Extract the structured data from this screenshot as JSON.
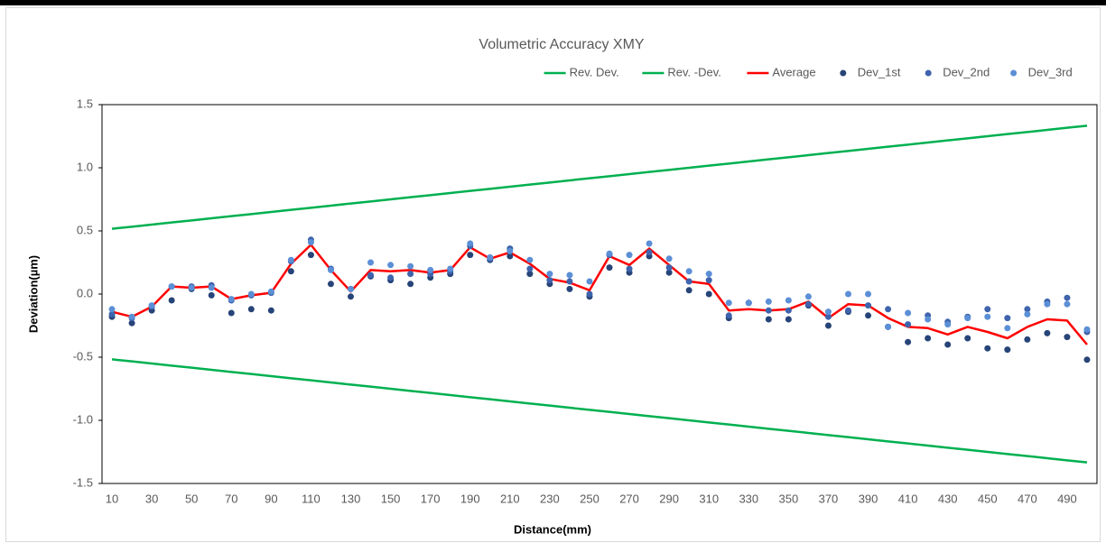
{
  "chart_data": {
    "type": "line",
    "title": "Volumetric Accuracy XMY",
    "x_label": "Distance(mm)",
    "y_label": "Deviation(µm)",
    "categories": [
      "10",
      null,
      "30",
      null,
      "50",
      null,
      "70",
      null,
      "90",
      null,
      "110",
      null,
      "130",
      null,
      "150",
      null,
      "170",
      null,
      "190",
      null,
      "210",
      null,
      "230",
      null,
      "250",
      null,
      "270",
      null,
      "290",
      null,
      "310",
      null,
      "330",
      null,
      "350",
      null,
      "370",
      null,
      "390",
      null,
      "410",
      null,
      "430",
      null,
      "450",
      null,
      "470",
      null,
      "490",
      null
    ],
    "ylim": [
      -1.5,
      1.5
    ],
    "yticks": [
      -1.5,
      {
        "value": -1.0,
        "label": "-1.0"
      },
      -0.5,
      {
        "value": 0,
        "label": "0.0"
      },
      0.5,
      {
        "value": 1.0,
        "label": "1.0"
      },
      1.5
    ],
    "grid": false,
    "legend": "top-right",
    "series": [
      {
        "name": "Rev. Dev.",
        "color": "#00b050",
        "style": "line",
        "values": [
          0.517,
          0.533,
          0.55,
          0.567,
          0.583,
          0.6,
          0.617,
          0.633,
          0.65,
          0.667,
          0.683,
          0.7,
          0.717,
          0.733,
          0.75,
          0.767,
          0.783,
          0.8,
          0.817,
          0.833,
          0.85,
          0.867,
          0.883,
          0.9,
          0.917,
          0.933,
          0.95,
          0.967,
          0.983,
          1.0,
          1.017,
          1.033,
          1.05,
          1.067,
          1.083,
          1.1,
          1.117,
          1.133,
          1.15,
          1.167,
          1.183,
          1.2,
          1.217,
          1.233,
          1.25,
          1.267,
          1.283,
          1.3,
          1.317,
          1.333
        ]
      },
      {
        "name": "Rev. -Dev.",
        "color": "#00b050",
        "style": "line",
        "values": [
          -0.517,
          -0.533,
          -0.55,
          -0.567,
          -0.583,
          -0.6,
          -0.617,
          -0.633,
          -0.65,
          -0.667,
          -0.683,
          -0.7,
          -0.717,
          -0.733,
          -0.75,
          -0.767,
          -0.783,
          -0.8,
          -0.817,
          -0.833,
          -0.85,
          -0.867,
          -0.883,
          -0.9,
          -0.917,
          -0.933,
          -0.95,
          -0.967,
          -0.983,
          -1.0,
          -1.017,
          -1.033,
          -1.05,
          -1.067,
          -1.083,
          -1.1,
          -1.117,
          -1.133,
          -1.15,
          -1.167,
          -1.183,
          -1.2,
          -1.217,
          -1.233,
          -1.25,
          -1.267,
          -1.283,
          -1.3,
          -1.317,
          -1.333
        ]
      },
      {
        "name": "Average",
        "color": "#ff0000",
        "style": "line",
        "values": [
          -0.14,
          -0.18,
          -0.1,
          0.06,
          0.05,
          0.06,
          -0.04,
          -0.01,
          0.01,
          0.24,
          0.39,
          0.19,
          0.02,
          0.19,
          0.18,
          0.19,
          0.17,
          0.19,
          0.37,
          0.28,
          0.33,
          0.24,
          0.12,
          0.09,
          0.03,
          0.3,
          0.23,
          0.36,
          0.23,
          0.1,
          0.08,
          -0.13,
          -0.12,
          -0.13,
          -0.12,
          -0.06,
          -0.19,
          -0.08,
          -0.09,
          -0.19,
          -0.26,
          -0.27,
          -0.32,
          -0.26,
          -0.3,
          -0.35,
          -0.26,
          -0.2,
          -0.21,
          -0.4
        ]
      },
      {
        "name": "Dev_1st",
        "color": "#264478",
        "style": "markers",
        "values": [
          -0.18,
          -0.23,
          -0.13,
          -0.05,
          0.04,
          -0.01,
          -0.15,
          -0.12,
          -0.13,
          0.18,
          0.31,
          0.08,
          -0.02,
          0.14,
          0.11,
          0.08,
          0.13,
          0.16,
          0.31,
          0.27,
          0.3,
          0.16,
          0.08,
          0.04,
          -0.02,
          0.21,
          0.17,
          0.3,
          0.17,
          0.03,
          0.0,
          -0.19,
          -0.07,
          -0.2,
          -0.2,
          -0.09,
          -0.25,
          -0.14,
          -0.17,
          -0.26,
          -0.38,
          -0.35,
          -0.4,
          -0.35,
          -0.43,
          -0.44,
          -0.36,
          -0.31,
          -0.34,
          -0.52
        ]
      },
      {
        "name": "Dev_2nd",
        "color": "#3f64ad",
        "style": "markers",
        "values": [
          -0.16,
          -0.19,
          -0.1,
          0.06,
          0.06,
          0.07,
          -0.05,
          -0.01,
          0.01,
          0.26,
          0.43,
          0.2,
          0.04,
          0.15,
          0.13,
          0.16,
          0.16,
          0.18,
          0.38,
          0.28,
          0.36,
          0.2,
          0.11,
          0.1,
          0.0,
          0.31,
          0.2,
          0.33,
          0.21,
          0.1,
          0.11,
          -0.17,
          -0.07,
          -0.13,
          -0.13,
          -0.08,
          -0.18,
          -0.13,
          -0.09,
          -0.12,
          -0.24,
          -0.17,
          -0.22,
          -0.18,
          -0.12,
          -0.19,
          -0.12,
          -0.06,
          -0.03,
          -0.3
        ]
      },
      {
        "name": "Dev_3rd",
        "color": "#5b8fd6",
        "style": "markers",
        "values": [
          -0.12,
          -0.18,
          -0.09,
          0.06,
          0.05,
          0.05,
          -0.04,
          0.0,
          0.02,
          0.27,
          0.41,
          0.19,
          0.04,
          0.25,
          0.23,
          0.22,
          0.19,
          0.2,
          0.4,
          0.29,
          0.34,
          0.27,
          0.16,
          0.15,
          0.1,
          0.32,
          0.31,
          0.4,
          0.28,
          0.18,
          0.16,
          -0.07,
          -0.07,
          -0.06,
          -0.05,
          -0.02,
          -0.14,
          0.0,
          0.0,
          -0.26,
          -0.15,
          -0.2,
          -0.24,
          -0.19,
          -0.18,
          -0.27,
          -0.16,
          -0.08,
          -0.08,
          -0.28
        ]
      }
    ]
  }
}
